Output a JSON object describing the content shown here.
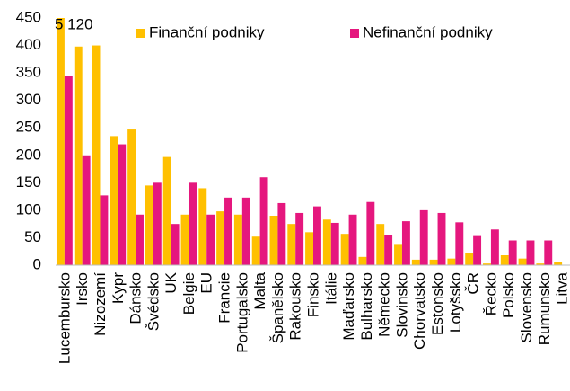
{
  "chart_data": {
    "type": "bar",
    "categories": [
      "Lucembursko",
      "Irsko",
      "Nizozemí",
      "Kypr",
      "Dánsko",
      "Švédsko",
      "UK",
      "Belgie",
      "EU",
      "Francie",
      "Portugalsko",
      "Malta",
      "Španělsko",
      "Rakousko",
      "Finsko",
      "Itálie",
      "Maďarsko",
      "Bulharsko",
      "Německo",
      "Slovinsko",
      "Chorvatsko",
      "Estonsko",
      "Lotyšsko",
      "ČR",
      "Řecko",
      "Polsko",
      "Slovensko",
      "Rumunsko",
      "Litva"
    ],
    "series": [
      {
        "name": "Finanční podniky",
        "color": "#ffc000",
        "values": [
          5120,
          398,
          400,
          235,
          247,
          145,
          197,
          92,
          140,
          98,
          92,
          52,
          90,
          75,
          60,
          83,
          57,
          15,
          75,
          37,
          10,
          10,
          12,
          22,
          3,
          18,
          12,
          3,
          5
        ],
        "value_labels": [
          "5 120",
          null,
          null,
          null,
          null,
          null,
          null,
          null,
          null,
          null,
          null,
          null,
          null,
          null,
          null,
          null,
          null,
          null,
          null,
          null,
          null,
          null,
          null,
          null,
          null,
          null,
          null,
          null,
          null
        ]
      },
      {
        "name": "Nefinanční podniky",
        "color": "#e5177e",
        "values": [
          345,
          200,
          127,
          220,
          92,
          150,
          75,
          150,
          92,
          123,
          123,
          160,
          113,
          95,
          107,
          77,
          92,
          115,
          55,
          80,
          100,
          95,
          78,
          53,
          65,
          45,
          45,
          45,
          null
        ]
      }
    ],
    "ylim": [
      0,
      450
    ],
    "yticks": [
      0,
      50,
      100,
      150,
      200,
      250,
      300,
      350,
      400,
      450
    ],
    "grid": false,
    "legend": "top"
  }
}
